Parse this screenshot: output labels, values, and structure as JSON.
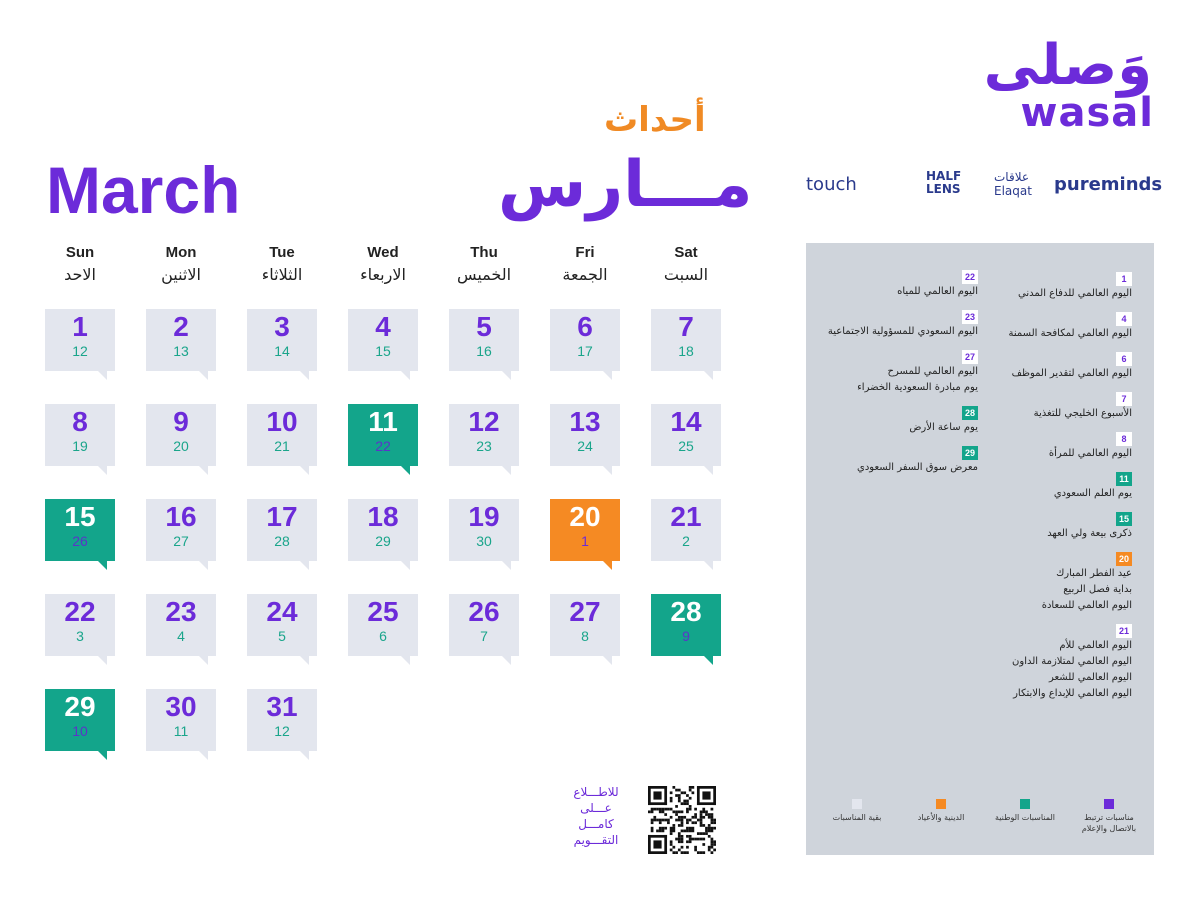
{
  "brand": {
    "name_ar": "وَصلى",
    "name_en": "wasal"
  },
  "partners": [
    "touch",
    "HALF LENS",
    "علاقات Elaqat",
    "pureminds"
  ],
  "title": {
    "events_ar": "أحداث",
    "month_ar": "مـــارس",
    "month_en": "March"
  },
  "weekdays": [
    {
      "en": "Sun",
      "ar": "الاحد"
    },
    {
      "en": "Mon",
      "ar": "الاثنين"
    },
    {
      "en": "Tue",
      "ar": "الثلاثاء"
    },
    {
      "en": "Wed",
      "ar": "الاربعاء"
    },
    {
      "en": "Thu",
      "ar": "الخميس"
    },
    {
      "en": "Fri",
      "ar": "الجمعة"
    },
    {
      "en": "Sat",
      "ar": "السبت"
    }
  ],
  "days": [
    {
      "d": "1",
      "h": "12",
      "type": "normal"
    },
    {
      "d": "2",
      "h": "13",
      "type": "normal"
    },
    {
      "d": "3",
      "h": "14",
      "type": "normal"
    },
    {
      "d": "4",
      "h": "15",
      "type": "normal"
    },
    {
      "d": "5",
      "h": "16",
      "type": "normal"
    },
    {
      "d": "6",
      "h": "17",
      "type": "normal"
    },
    {
      "d": "7",
      "h": "18",
      "type": "normal"
    },
    {
      "d": "8",
      "h": "19",
      "type": "normal"
    },
    {
      "d": "9",
      "h": "20",
      "type": "normal"
    },
    {
      "d": "10",
      "h": "21",
      "type": "normal"
    },
    {
      "d": "11",
      "h": "22",
      "type": "green"
    },
    {
      "d": "12",
      "h": "23",
      "type": "normal"
    },
    {
      "d": "13",
      "h": "24",
      "type": "normal"
    },
    {
      "d": "14",
      "h": "25",
      "type": "normal"
    },
    {
      "d": "15",
      "h": "26",
      "type": "green"
    },
    {
      "d": "16",
      "h": "27",
      "type": "normal"
    },
    {
      "d": "17",
      "h": "28",
      "type": "normal"
    },
    {
      "d": "18",
      "h": "29",
      "type": "normal"
    },
    {
      "d": "19",
      "h": "30",
      "type": "normal"
    },
    {
      "d": "20",
      "h": "1",
      "type": "orange"
    },
    {
      "d": "21",
      "h": "2",
      "type": "normal"
    },
    {
      "d": "22",
      "h": "3",
      "type": "normal"
    },
    {
      "d": "23",
      "h": "4",
      "type": "normal"
    },
    {
      "d": "24",
      "h": "5",
      "type": "normal"
    },
    {
      "d": "25",
      "h": "6",
      "type": "normal"
    },
    {
      "d": "26",
      "h": "7",
      "type": "normal"
    },
    {
      "d": "27",
      "h": "8",
      "type": "normal"
    },
    {
      "d": "28",
      "h": "9",
      "type": "green"
    },
    {
      "d": "29",
      "h": "10",
      "type": "green"
    },
    {
      "d": "30",
      "h": "11",
      "type": "normal"
    },
    {
      "d": "31",
      "h": "12",
      "type": "normal"
    }
  ],
  "events_right": [
    {
      "day": "1",
      "type": "purple",
      "lines": [
        "اليوم العالمي للدفاع المدني"
      ]
    },
    {
      "day": "4",
      "type": "purple",
      "lines": [
        "اليوم العالمي لمكافحة السمنة"
      ]
    },
    {
      "day": "6",
      "type": "purple",
      "lines": [
        "اليوم العالمي لتقدير الموظف"
      ]
    },
    {
      "day": "7",
      "type": "purple",
      "lines": [
        "الأسبوع الخليجي للتغذية"
      ]
    },
    {
      "day": "8",
      "type": "purple",
      "lines": [
        "اليوم العالمي للمرأة"
      ]
    },
    {
      "day": "11",
      "type": "green",
      "lines": [
        "يوم العلم السعودي"
      ]
    },
    {
      "day": "15",
      "type": "green",
      "lines": [
        "ذكرى بيعة ولي العهد"
      ]
    },
    {
      "day": "20",
      "type": "orange",
      "lines": [
        "عيد الفطر المبارك",
        "بداية فصل الربيع",
        "اليوم العالمي للسعادة"
      ]
    },
    {
      "day": "21",
      "type": "purple",
      "lines": [
        "اليوم العالمي للأم",
        "اليوم العالمي لمتلازمة الداون",
        "اليوم العالمي للشعر",
        "اليوم العالمي للإبداع والابتكار"
      ]
    }
  ],
  "events_left": [
    {
      "day": "22",
      "type": "purple",
      "lines": [
        "اليوم العالمي للمياه"
      ]
    },
    {
      "day": "23",
      "type": "purple",
      "lines": [
        "اليوم السعودي للمسؤولية الاجتماعية"
      ]
    },
    {
      "day": "27",
      "type": "purple",
      "lines": [
        "اليوم العالمي للمسرح",
        "يوم مبادرة السعودية الخضراء"
      ]
    },
    {
      "day": "28",
      "type": "green",
      "lines": [
        "يوم ساعة الأرض"
      ]
    },
    {
      "day": "29",
      "type": "green",
      "lines": [
        "معرض سوق السفر السعودي"
      ]
    }
  ],
  "legend": [
    {
      "color": "#6c2bd9",
      "label": "مناسبات ترتبط بالاتصال والإعلام"
    },
    {
      "color": "#13a58b",
      "label": "المناسبات الوطنية"
    },
    {
      "color": "#f58a23",
      "label": "الدينية والأعياد"
    },
    {
      "color": "#e3e6ee",
      "label": "بقية المناسبات"
    }
  ],
  "qr_text": [
    "للاطـــلاع",
    "عـــلى",
    "كامـــل",
    "التقـــويم"
  ]
}
